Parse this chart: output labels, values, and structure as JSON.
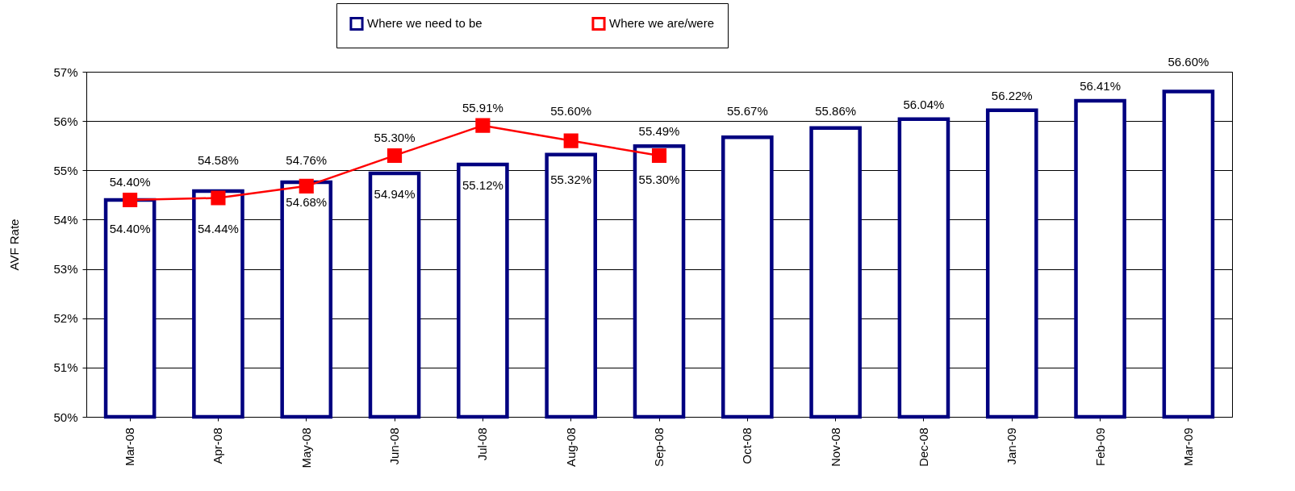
{
  "chart_data": {
    "type": "bar",
    "ylabel": "AVF Rate",
    "categories": [
      "Mar-08",
      "Apr-08",
      "May-08",
      "Jun-08",
      "Jul-08",
      "Aug-08",
      "Sep-08",
      "Oct-08",
      "Nov-08",
      "Dec-08",
      "Jan-09",
      "Feb-09",
      "Mar-09"
    ],
    "series": [
      {
        "name": "Where we need to be",
        "color": "#000080",
        "values": [
          54.4,
          54.58,
          54.76,
          54.94,
          55.12,
          55.32,
          55.49,
          55.67,
          55.86,
          56.04,
          56.22,
          56.41,
          56.6
        ],
        "value_labels": [
          "54.40%",
          "54.58%",
          "54.76%",
          "54.94%",
          "55.12%",
          "55.32%",
          "55.49%",
          "55.67%",
          "55.86%",
          "56.04%",
          "56.22%",
          "56.41%",
          "56.60%"
        ]
      },
      {
        "name": "Where we are/were",
        "type": "line",
        "color": "#ff0000",
        "values": [
          54.4,
          54.44,
          54.68,
          55.3,
          55.91,
          55.6,
          55.3,
          null,
          null,
          null,
          null,
          null,
          null
        ],
        "value_labels": [
          "54.40%",
          "54.44%",
          "54.68%",
          "55.30%",
          "55.91%",
          "55.60%",
          "55.30%",
          null,
          null,
          null,
          null,
          null,
          null
        ]
      }
    ],
    "ylim": [
      50,
      57
    ],
    "yticks": [
      {
        "value": 50,
        "label": "50%"
      },
      {
        "value": 51,
        "label": "51%"
      },
      {
        "value": 52,
        "label": "52%"
      },
      {
        "value": 53,
        "label": "53%"
      },
      {
        "value": 54,
        "label": "54%"
      },
      {
        "value": 55,
        "label": "55%"
      },
      {
        "value": 56,
        "label": "56%"
      },
      {
        "value": 57,
        "label": "57%"
      }
    ],
    "grid": "y",
    "legend": "top",
    "marker": "square",
    "line_style": "solid"
  }
}
